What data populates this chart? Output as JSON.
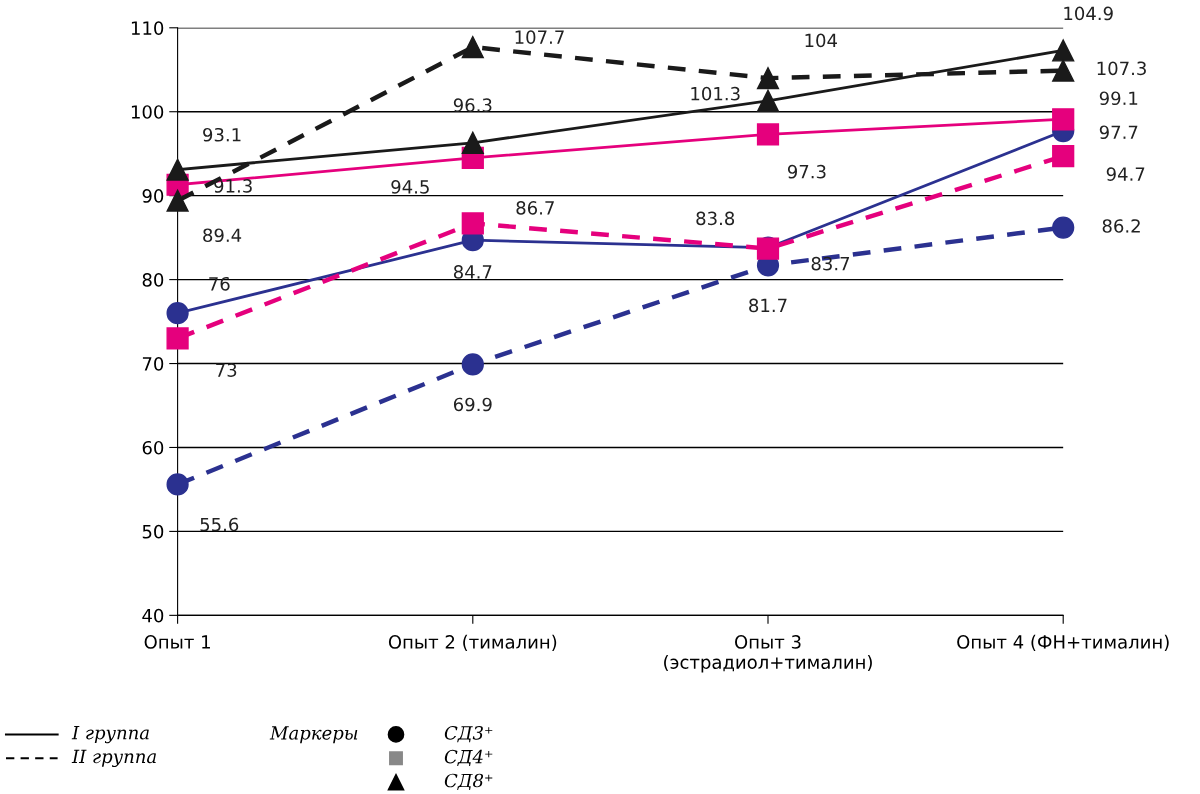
{
  "chart_data": {
    "type": "line",
    "categories": [
      "Опыт 1",
      "Опыт 2 (тималин)",
      "Опыт 3\n(эстрадиол+тималин)",
      "Опыт 4 (ФН+тималин)"
    ],
    "series": [
      {
        "color": "#2b3190",
        "marker": "circle",
        "line_style": "solid",
        "values": [
          76,
          84.7,
          83.8,
          97.7
        ]
      },
      {
        "color": "#2b3190",
        "marker": "circle",
        "line_style": "dashed",
        "values": [
          55.6,
          69.9,
          81.7,
          86.2
        ]
      },
      {
        "color": "#e5007d",
        "marker": "square",
        "line_style": "solid",
        "values": [
          91.3,
          94.5,
          97.3,
          99.1
        ]
      },
      {
        "color": "#e5007d",
        "marker": "square",
        "line_style": "dashed",
        "values": [
          73,
          86.7,
          83.7,
          94.7
        ]
      },
      {
        "color": "#1a1a1a",
        "marker": "triangle",
        "line_style": "solid",
        "values": [
          93.1,
          96.3,
          101.3,
          107.3
        ]
      },
      {
        "color": "#1a1a1a",
        "marker": "triangle",
        "line_style": "dashed",
        "values": [
          89.4,
          107.7,
          104,
          104.9
        ]
      }
    ],
    "ylim": [
      40,
      110
    ],
    "yticks": [
      40,
      50,
      60,
      70,
      80,
      90,
      100,
      110
    ],
    "grid": "y",
    "data_labels": true,
    "annotations": [
      "I группа",
      "II группа",
      "Маркеры",
      "СД3⁺",
      "СД4⁺",
      "СД8⁺"
    ]
  }
}
